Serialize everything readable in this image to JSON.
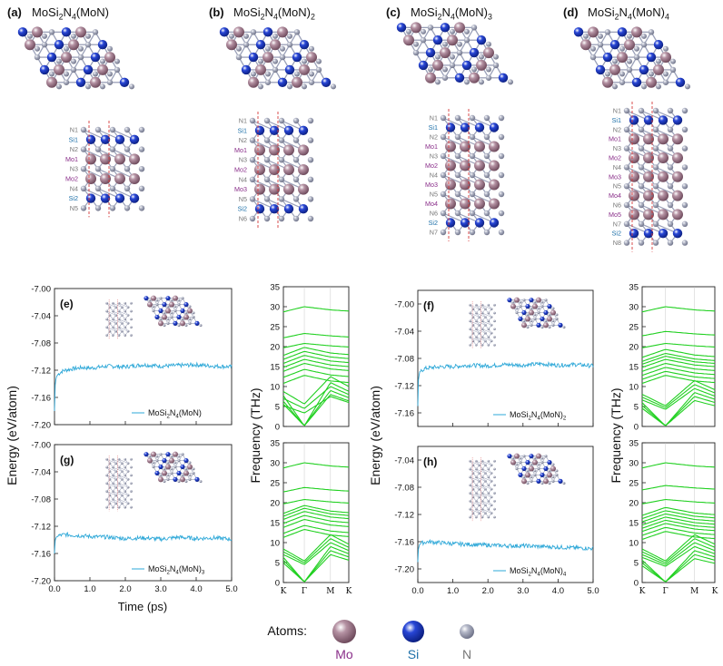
{
  "colors": {
    "mo": "#b592a3",
    "mo_label": "#8a2f8a",
    "si": "#2846d6",
    "si_label": "#1c6fa8",
    "n": "#b4b8c8",
    "n_label": "#777777",
    "md_line": "#2ea8d8",
    "phonon": "#20d020",
    "cell": "#d63a3a",
    "axis": "#222222"
  },
  "structures": [
    {
      "panel": "(a)",
      "formula": [
        "MoSi",
        "2",
        "N",
        "4",
        "(MoN)",
        ""
      ],
      "layers": [
        "N1",
        "Si1",
        "N2",
        "Mo1",
        "N3",
        "Mo2",
        "N4",
        "Si2",
        "N5"
      ]
    },
    {
      "panel": "(b)",
      "formula": [
        "MoSi",
        "2",
        "N",
        "4",
        "(MoN)",
        "2"
      ],
      "layers": [
        "N1",
        "Si1",
        "N2",
        "Mo1",
        "N3",
        "Mo2",
        "N4",
        "Mo3",
        "N5",
        "Si2",
        "N6"
      ]
    },
    {
      "panel": "(c)",
      "formula": [
        "MoSi",
        "2",
        "N",
        "4",
        "(MoN)",
        "3"
      ],
      "layers": [
        "N1",
        "Si1",
        "N2",
        "Mo1",
        "N3",
        "Mo2",
        "N4",
        "Mo3",
        "N5",
        "Mo4",
        "N6",
        "Si2",
        "N7"
      ]
    },
    {
      "panel": "(d)",
      "formula": [
        "MoSi",
        "2",
        "N",
        "4",
        "(MoN)",
        "4"
      ],
      "layers": [
        "N1",
        "Si1",
        "N2",
        "Mo1",
        "N3",
        "Mo2",
        "N4",
        "Mo3",
        "N5",
        "Mo4",
        "N6",
        "Mo5",
        "N7",
        "Si2",
        "N8"
      ]
    }
  ],
  "axis_labels": {
    "energy": "Energy (eV/atom)",
    "frequency": "Frequency (THz)",
    "time": "Time (ps)"
  },
  "atoms_legend": {
    "title": "Atoms:",
    "items": [
      "Mo",
      "Si",
      "N"
    ]
  },
  "chart_data": [
    {
      "type": "line",
      "panel": "(e)",
      "legend": [
        "MoSi",
        "2",
        "N",
        "4",
        "(MoN)",
        ""
      ],
      "xlabel": "",
      "ylabel": "Energy (eV/atom)",
      "xlim": [
        0,
        5
      ],
      "ylim": [
        -7.2,
        -7.0
      ],
      "xticks": [
        "0.0",
        "1.0",
        "2.0",
        "3.0",
        "4.0",
        "5.0"
      ],
      "show_xticklabels": false,
      "yticks": [
        "-7.00",
        "-7.04",
        "-7.08",
        "-7.12",
        "-7.16",
        "-7.20"
      ],
      "series": [
        {
          "name": "MoSi2N4(MoN)",
          "start": -7.18,
          "x": [
            0.0,
            0.02,
            0.05,
            0.1,
            0.2,
            0.3,
            0.5,
            0.8,
            1.0,
            1.5,
            2.0,
            2.5,
            3.0,
            3.5,
            4.0,
            4.5,
            5.0
          ],
          "y": [
            -7.18,
            -7.14,
            -7.13,
            -7.126,
            -7.122,
            -7.12,
            -7.118,
            -7.116,
            -7.117,
            -7.114,
            -7.115,
            -7.112,
            -7.114,
            -7.113,
            -7.112,
            -7.114,
            -7.115
          ]
        }
      ]
    },
    {
      "type": "line",
      "panel": "(f)",
      "legend": [
        "MoSi",
        "2",
        "N",
        "4",
        "(MoN)",
        "2"
      ],
      "xlabel": "",
      "ylabel": "Energy (eV/atom)",
      "xlim": [
        0,
        5
      ],
      "ylim": [
        -7.18,
        -6.98
      ],
      "xticks": [
        "0.0",
        "1.0",
        "2.0",
        "3.0",
        "4.0",
        "5.0"
      ],
      "show_xticklabels": false,
      "yticks": [
        "-7.00",
        "-7.04",
        "-7.08",
        "-7.12",
        "-7.16"
      ],
      "series": [
        {
          "name": "MoSi2N4(MoN)2",
          "start": -7.15,
          "x": [
            0.0,
            0.02,
            0.05,
            0.1,
            0.2,
            0.3,
            0.5,
            0.8,
            1.0,
            1.5,
            2.0,
            2.5,
            3.0,
            3.5,
            4.0,
            4.5,
            5.0
          ],
          "y": [
            -7.15,
            -7.11,
            -7.1,
            -7.098,
            -7.095,
            -7.094,
            -7.093,
            -7.092,
            -7.092,
            -7.09,
            -7.091,
            -7.089,
            -7.09,
            -7.088,
            -7.09,
            -7.089,
            -7.091
          ]
        }
      ]
    },
    {
      "type": "line",
      "panel": "(g)",
      "legend": [
        "MoSi",
        "2",
        "N",
        "4",
        "(MoN)",
        "3"
      ],
      "xlabel": "Time (ps)",
      "ylabel": "",
      "xlim": [
        0,
        5
      ],
      "ylim": [
        -7.2,
        -7.0
      ],
      "xticks": [
        "0.0",
        "1.0",
        "2.0",
        "3.0",
        "4.0",
        "5.0"
      ],
      "show_xticklabels": true,
      "yticks": [
        "-7.00",
        "-7.04",
        "-7.08",
        "-7.12",
        "-7.16",
        "-7.20"
      ],
      "series": [
        {
          "name": "MoSi2N4(MoN)3",
          "start": -7.16,
          "x": [
            0.0,
            0.02,
            0.05,
            0.1,
            0.2,
            0.3,
            0.5,
            0.8,
            1.0,
            1.5,
            2.0,
            2.5,
            3.0,
            3.5,
            4.0,
            4.5,
            5.0
          ],
          "y": [
            -7.16,
            -7.14,
            -7.136,
            -7.134,
            -7.133,
            -7.132,
            -7.133,
            -7.134,
            -7.135,
            -7.136,
            -7.138,
            -7.137,
            -7.139,
            -7.136,
            -7.138,
            -7.137,
            -7.139
          ]
        }
      ]
    },
    {
      "type": "line",
      "panel": "(h)",
      "legend": [
        "MoSi",
        "2",
        "N",
        "4",
        "(MoN)",
        "4"
      ],
      "xlabel": "",
      "ylabel": "",
      "xlim": [
        0,
        5
      ],
      "ylim": [
        -7.22,
        -7.02
      ],
      "xticks": [
        "0.0",
        "1.0",
        "2.0",
        "3.0",
        "4.0",
        "5.0"
      ],
      "show_xticklabels": true,
      "yticks": [
        "-7.04",
        "-7.08",
        "-7.12",
        "-7.16",
        "-7.20"
      ],
      "series": [
        {
          "name": "MoSi2N4(MoN)4",
          "start": -7.19,
          "x": [
            0.0,
            0.02,
            0.05,
            0.1,
            0.2,
            0.3,
            0.5,
            0.8,
            1.0,
            1.5,
            2.0,
            2.5,
            3.0,
            3.5,
            4.0,
            4.5,
            5.0
          ],
          "y": [
            -7.19,
            -7.17,
            -7.164,
            -7.162,
            -7.161,
            -7.16,
            -7.161,
            -7.162,
            -7.163,
            -7.164,
            -7.165,
            -7.166,
            -7.166,
            -7.167,
            -7.168,
            -7.169,
            -7.17
          ]
        }
      ]
    },
    {
      "type": "line",
      "panel": "phonon-b",
      "ylabel": "Frequency (THz)",
      "ylim": [
        0,
        35
      ],
      "yticks": [
        "0",
        "5",
        "10",
        "15",
        "20",
        "25",
        "30",
        "35"
      ],
      "kpoints": [
        "K",
        "Γ",
        "M",
        "K"
      ],
      "show_kticklabels": false,
      "top_bands": [
        20.5,
        23.0,
        29.5
      ],
      "optical_bands": [
        12.0,
        13.5,
        15.0,
        16.0,
        17.0,
        18.0,
        19.0
      ],
      "acoustic_max": [
        8.0,
        9.0,
        11.0,
        7.5,
        10.0,
        12.5
      ]
    },
    {
      "type": "line",
      "panel": "phonon-d",
      "ylabel": "Frequency (THz)",
      "ylim": [
        0,
        35
      ],
      "yticks": [
        "0",
        "5",
        "10",
        "15",
        "20",
        "25",
        "30",
        "35"
      ],
      "kpoints": [
        "K",
        "Γ",
        "M",
        "K"
      ],
      "show_kticklabels": false,
      "top_bands": [
        20.5,
        23.5,
        29.5
      ],
      "optical_bands": [
        12.0,
        13.0,
        14.0,
        15.0,
        16.0,
        16.8,
        17.5,
        18.5
      ],
      "acoustic_max": [
        6.5,
        7.5,
        8.5,
        9.5,
        10.5,
        11.5
      ]
    },
    {
      "type": "line",
      "panel": "phonon-c",
      "ylabel": "",
      "ylim": [
        0,
        35
      ],
      "yticks": [
        "0",
        "5",
        "10",
        "15",
        "20",
        "25",
        "30",
        "35"
      ],
      "kpoints": [
        "K",
        "Γ",
        "M",
        "K"
      ],
      "show_kticklabels": true,
      "top_bands": [
        20.5,
        23.5,
        29.5
      ],
      "optical_bands": [
        12.5,
        13.5,
        15.0,
        16.0,
        17.0,
        17.8,
        18.5
      ],
      "acoustic_max": [
        7.0,
        8.0,
        9.0,
        10.0,
        11.0,
        12.0
      ]
    },
    {
      "type": "line",
      "panel": "phonon-e",
      "ylabel": "",
      "ylim": [
        0,
        35
      ],
      "yticks": [
        "0",
        "5",
        "10",
        "15",
        "20",
        "25",
        "30",
        "35"
      ],
      "kpoints": [
        "K",
        "Γ",
        "M",
        "K"
      ],
      "show_kticklabels": true,
      "top_bands": [
        20.5,
        24.0,
        29.5
      ],
      "optical_bands": [
        12.0,
        13.0,
        14.0,
        14.8,
        15.6,
        16.4,
        17.2,
        18.0
      ],
      "acoustic_max": [
        6.0,
        7.0,
        8.0,
        9.0,
        10.0,
        11.0,
        12.0
      ]
    }
  ]
}
